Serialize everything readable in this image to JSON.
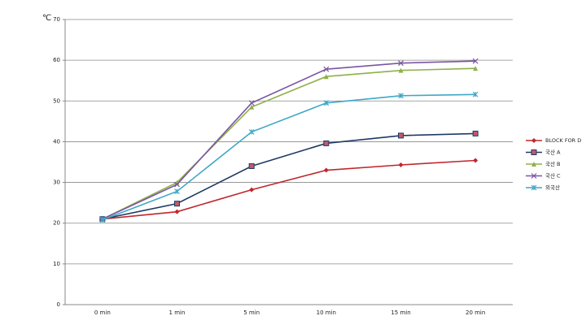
{
  "chart_data": {
    "type": "line",
    "y_label": "℃",
    "categories": [
      "0 min",
      "1 min",
      "5 min",
      "10 min",
      "15 min",
      "20 min"
    ],
    "series": [
      {
        "name": "BLOCK FOR D",
        "color": "#c0272d",
        "marker": "diamond",
        "values": [
          21,
          22.8,
          28.2,
          33,
          34.3,
          35.4
        ]
      },
      {
        "name": "국산 A",
        "color": "#1f3a64",
        "marker": "square",
        "values": [
          21,
          24.8,
          34,
          39.6,
          41.5,
          42
        ]
      },
      {
        "name": "국산 B",
        "color": "#8fb04a",
        "marker": "triangle",
        "values": [
          21,
          30,
          48.5,
          56,
          57.5,
          58
        ]
      },
      {
        "name": "국산 C",
        "color": "#7a55a3",
        "marker": "cross",
        "values": [
          21,
          29.5,
          49.5,
          57.8,
          59.3,
          59.8
        ]
      },
      {
        "name": "외국산",
        "color": "#3fa8c6",
        "marker": "star",
        "values": [
          20.8,
          27.8,
          42.4,
          49.5,
          51.3,
          51.6
        ]
      }
    ],
    "ylim": [
      0,
      70
    ],
    "yticks": [
      0,
      10,
      20,
      30,
      40,
      50,
      60,
      70
    ],
    "grid": true,
    "legend": "right"
  }
}
